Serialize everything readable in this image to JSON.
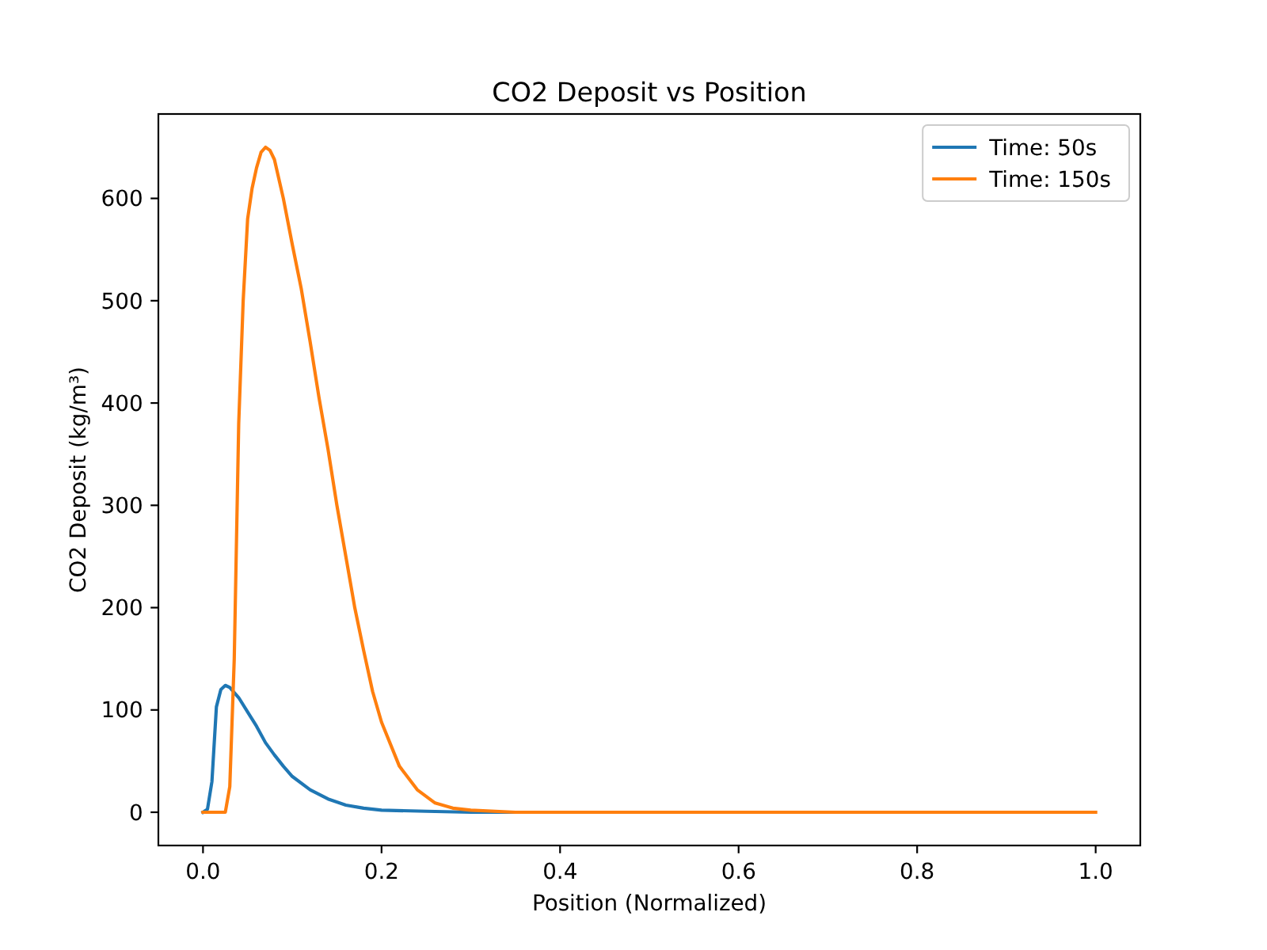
{
  "chart_data": {
    "type": "line",
    "title": "CO2 Deposit vs Position",
    "xlabel": "Position (Normalized)",
    "ylabel": "CO2 Deposit (kg/m³)",
    "xlim": [
      -0.05,
      1.05
    ],
    "xticks": [
      {
        "value": 0,
        "label": "0.0"
      },
      {
        "value": 0.2,
        "label": "0.2"
      },
      {
        "value": 0.4,
        "label": "0.4"
      },
      {
        "value": 0.6,
        "label": "0.6"
      },
      {
        "value": 0.8,
        "label": "0.8"
      },
      {
        "value": 1,
        "label": "1.0"
      }
    ],
    "ylim": [
      -32.5,
      682.5
    ],
    "yticks": [
      0,
      100,
      200,
      300,
      400,
      500,
      600
    ],
    "legend": "top right",
    "series": [
      {
        "name": "Time: 50s",
        "color": "#1f77b4",
        "x": [
          0,
          0.005,
          0.01,
          0.015,
          0.02,
          0.025,
          0.03,
          0.04,
          0.05,
          0.06,
          0.07,
          0.08,
          0.09,
          0.1,
          0.12,
          0.14,
          0.16,
          0.18,
          0.2,
          0.25,
          0.3,
          0.4
        ],
        "values": [
          0,
          3,
          30,
          103,
          120,
          124,
          122,
          112,
          98,
          84,
          68,
          56,
          45,
          35,
          22,
          13,
          7,
          4,
          2,
          1,
          0,
          0
        ]
      },
      {
        "name": "Time: 150s",
        "color": "#ff7f0e",
        "x": [
          0,
          0.005,
          0.01,
          0.015,
          0.02,
          0.025,
          0.03,
          0.035,
          0.04,
          0.045,
          0.05,
          0.055,
          0.06,
          0.065,
          0.07,
          0.075,
          0.08,
          0.09,
          0.1,
          0.11,
          0.12,
          0.13,
          0.14,
          0.15,
          0.16,
          0.17,
          0.18,
          0.19,
          0.2,
          0.22,
          0.24,
          0.26,
          0.28,
          0.3,
          0.35,
          0.4,
          0.6,
          0.8,
          1.0
        ],
        "values": [
          0,
          0,
          0,
          0,
          0,
          0,
          25,
          150,
          380,
          500,
          580,
          610,
          630,
          645,
          650,
          647,
          638,
          600,
          555,
          512,
          460,
          405,
          355,
          300,
          250,
          200,
          158,
          118,
          88,
          45,
          22,
          9,
          4,
          2,
          0,
          0,
          0,
          0,
          0
        ]
      }
    ]
  }
}
